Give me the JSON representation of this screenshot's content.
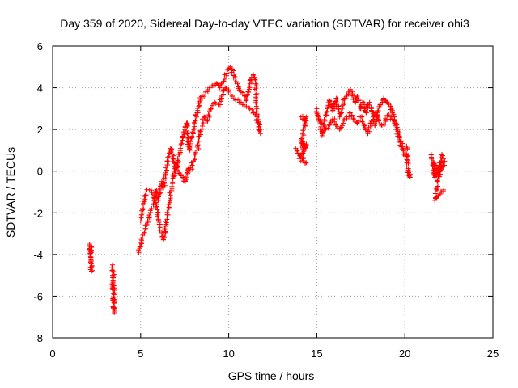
{
  "chart_data": {
    "type": "scatter",
    "title": "Day 359 of 2020, Sidereal Day-to-day VTEC variation (SDTVAR) for receiver ohi3",
    "xlabel": "GPS time / hours",
    "ylabel": "SDTVAR / TECUs",
    "xlim": [
      0,
      25
    ],
    "ylim": [
      -8,
      6
    ],
    "xticks": [
      "0",
      "5",
      "10",
      "15",
      "20",
      "25"
    ],
    "yticks": [
      "-8",
      "-6",
      "-4",
      "-2",
      "0",
      "2",
      "4",
      "6"
    ],
    "grid": true,
    "marker": "+",
    "color": "#ff0000",
    "series": [
      {
        "name": "SDTVAR",
        "segments": [
          [
            [
              2.1,
              -3.5
            ],
            [
              2.15,
              -4.1
            ],
            [
              2.2,
              -4.8
            ],
            [
              2.2,
              -3.6
            ]
          ],
          [
            [
              3.4,
              -4.5
            ],
            [
              3.45,
              -5.1
            ],
            [
              3.45,
              -5.6
            ],
            [
              3.5,
              -6.3
            ],
            [
              3.5,
              -6.8
            ],
            [
              3.4,
              -5.0
            ]
          ],
          [
            [
              4.9,
              -3.9
            ],
            [
              5.0,
              -3.6
            ],
            [
              5.2,
              -3.0
            ],
            [
              5.4,
              -2.4
            ],
            [
              5.6,
              -1.8
            ],
            [
              5.8,
              -1.3
            ],
            [
              5.9,
              -0.9
            ],
            [
              6.0,
              -1.4
            ],
            [
              6.1,
              -0.9
            ],
            [
              6.2,
              -0.5
            ],
            [
              6.3,
              -0.8
            ],
            [
              6.4,
              -0.2
            ],
            [
              6.5,
              0.3
            ],
            [
              6.6,
              0.7
            ],
            [
              6.7,
              1.1
            ],
            [
              6.8,
              0.8
            ],
            [
              6.9,
              0.4
            ],
            [
              7.0,
              0.0
            ],
            [
              7.1,
              0.4
            ],
            [
              7.2,
              0.8
            ],
            [
              7.3,
              1.3
            ],
            [
              7.4,
              1.6
            ],
            [
              7.5,
              2.0
            ],
            [
              7.6,
              2.3
            ],
            [
              7.7,
              1.4
            ],
            [
              7.8,
              1.0
            ],
            [
              7.9,
              1.6
            ],
            [
              8.0,
              2.0
            ],
            [
              8.1,
              2.4
            ],
            [
              8.2,
              2.8
            ],
            [
              8.3,
              3.1
            ],
            [
              8.4,
              3.4
            ],
            [
              8.5,
              3.6
            ],
            [
              8.7,
              3.8
            ],
            [
              8.9,
              4.0
            ],
            [
              9.1,
              4.1
            ],
            [
              9.3,
              4.2
            ],
            [
              9.5,
              4.0
            ],
            [
              9.7,
              4.3
            ],
            [
              9.9,
              4.7
            ],
            [
              10.0,
              4.9
            ],
            [
              10.1,
              5.0
            ],
            [
              10.2,
              4.9
            ],
            [
              10.3,
              4.6
            ],
            [
              10.5,
              4.2
            ],
            [
              10.7,
              3.8
            ],
            [
              10.9,
              3.6
            ],
            [
              11.0,
              3.4
            ],
            [
              11.1,
              3.8
            ],
            [
              11.2,
              4.2
            ],
            [
              11.3,
              4.5
            ],
            [
              11.4,
              4.6
            ],
            [
              11.5,
              4.4
            ],
            [
              11.6,
              3.0
            ],
            [
              11.7,
              2.3
            ],
            [
              11.8,
              1.8
            ]
          ],
          [
            [
              5.0,
              -2.4
            ],
            [
              5.1,
              -1.8
            ],
            [
              5.2,
              -1.4
            ],
            [
              5.3,
              -1.0
            ],
            [
              5.5,
              -0.9
            ],
            [
              5.7,
              -1.1
            ],
            [
              5.9,
              -1.6
            ],
            [
              6.0,
              -2.2
            ],
            [
              6.1,
              -2.7
            ],
            [
              6.2,
              -3.0
            ],
            [
              6.3,
              -3.3
            ],
            [
              6.4,
              -2.9
            ],
            [
              6.5,
              -2.2
            ],
            [
              6.6,
              -1.6
            ],
            [
              6.7,
              -1.0
            ],
            [
              6.8,
              -0.6
            ],
            [
              6.9,
              0.0
            ],
            [
              7.0,
              0.3
            ],
            [
              7.2,
              -0.1
            ],
            [
              7.4,
              -0.3
            ],
            [
              7.5,
              -0.5
            ],
            [
              7.6,
              -0.4
            ],
            [
              7.7,
              0.1
            ],
            [
              7.8,
              0.0
            ],
            [
              8.0,
              0.5
            ],
            [
              8.2,
              1.0
            ],
            [
              8.4,
              1.9
            ],
            [
              8.6,
              2.6
            ],
            [
              8.8,
              2.4
            ],
            [
              9.0,
              3.0
            ],
            [
              9.2,
              3.3
            ],
            [
              9.4,
              3.2
            ],
            [
              9.6,
              3.5
            ],
            [
              9.8,
              4.0
            ],
            [
              10.0,
              3.9
            ],
            [
              10.2,
              3.6
            ],
            [
              10.4,
              3.4
            ],
            [
              10.6,
              3.3
            ],
            [
              10.8,
              3.2
            ],
            [
              11.0,
              3.1
            ],
            [
              11.2,
              3.0
            ],
            [
              11.4,
              2.8
            ],
            [
              11.6,
              2.6
            ],
            [
              11.7,
              2.0
            ]
          ],
          [
            [
              14.1,
              2.6
            ],
            [
              14.2,
              2.5
            ],
            [
              14.3,
              2.4
            ],
            [
              14.4,
              2.6
            ],
            [
              14.1,
              1.2
            ],
            [
              14.2,
              1.4
            ],
            [
              14.3,
              1.0
            ],
            [
              14.4,
              1.3
            ],
            [
              14.0,
              0.6
            ],
            [
              14.2,
              0.5
            ],
            [
              14.4,
              0.4
            ],
            [
              13.8,
              1.1
            ]
          ],
          [
            [
              15.0,
              3.0
            ],
            [
              15.1,
              2.6
            ],
            [
              15.2,
              2.0
            ],
            [
              15.3,
              1.7
            ],
            [
              15.4,
              2.2
            ],
            [
              15.5,
              2.7
            ],
            [
              15.6,
              3.0
            ],
            [
              15.7,
              3.4
            ],
            [
              15.8,
              3.2
            ],
            [
              15.9,
              2.9
            ],
            [
              16.0,
              3.1
            ],
            [
              16.1,
              3.5
            ],
            [
              16.2,
              3.0
            ],
            [
              16.3,
              2.6
            ],
            [
              16.4,
              2.8
            ],
            [
              16.5,
              3.2
            ],
            [
              16.6,
              3.5
            ],
            [
              16.7,
              3.6
            ],
            [
              16.8,
              3.7
            ],
            [
              16.9,
              3.9
            ],
            [
              17.0,
              3.8
            ],
            [
              17.1,
              3.6
            ],
            [
              17.2,
              3.3
            ],
            [
              17.3,
              3.6
            ],
            [
              17.4,
              3.4
            ],
            [
              17.5,
              3.0
            ],
            [
              17.6,
              3.3
            ],
            [
              17.7,
              3.0
            ],
            [
              17.8,
              2.8
            ],
            [
              17.9,
              3.2
            ],
            [
              18.0,
              3.3
            ],
            [
              18.1,
              3.0
            ],
            [
              18.2,
              2.6
            ],
            [
              18.3,
              2.2
            ],
            [
              18.4,
              2.5
            ],
            [
              18.5,
              2.9
            ],
            [
              18.6,
              3.2
            ],
            [
              18.7,
              3.4
            ],
            [
              18.8,
              3.5
            ],
            [
              18.9,
              3.4
            ],
            [
              19.0,
              3.3
            ],
            [
              19.1,
              3.2
            ],
            [
              19.2,
              3.1
            ],
            [
              19.3,
              2.9
            ],
            [
              19.4,
              2.6
            ],
            [
              19.5,
              2.3
            ],
            [
              19.6,
              2.0
            ],
            [
              19.7,
              1.6
            ],
            [
              19.8,
              1.2
            ],
            [
              19.9,
              1.0
            ],
            [
              20.0,
              0.8
            ],
            [
              20.1,
              0.7
            ]
          ],
          [
            [
              15.1,
              2.5
            ],
            [
              15.3,
              2.3
            ],
            [
              15.5,
              2.0
            ],
            [
              15.7,
              2.2
            ],
            [
              15.9,
              2.5
            ],
            [
              16.1,
              2.2
            ],
            [
              16.3,
              2.0
            ],
            [
              16.5,
              2.3
            ],
            [
              16.7,
              2.6
            ],
            [
              16.9,
              2.8
            ],
            [
              17.1,
              2.5
            ],
            [
              17.3,
              2.3
            ],
            [
              17.5,
              2.6
            ],
            [
              17.7,
              2.2
            ],
            [
              17.9,
              1.8
            ],
            [
              18.1,
              2.4
            ],
            [
              18.3,
              2.8
            ],
            [
              18.5,
              2.5
            ],
            [
              18.7,
              2.2
            ],
            [
              18.9,
              2.4
            ],
            [
              19.1,
              2.7
            ],
            [
              19.3,
              2.5
            ],
            [
              19.5,
              2.0
            ],
            [
              19.7,
              1.5
            ],
            [
              19.9,
              1.1
            ],
            [
              20.1,
              1.2
            ],
            [
              20.2,
              -0.2
            ],
            [
              20.3,
              -0.3
            ],
            [
              20.2,
              0.0
            ]
          ],
          [
            [
              21.5,
              0.8
            ],
            [
              21.6,
              0.5
            ],
            [
              21.7,
              0.2
            ],
            [
              21.8,
              -0.2
            ],
            [
              21.9,
              0.0
            ],
            [
              22.0,
              0.4
            ],
            [
              22.1,
              0.8
            ],
            [
              22.2,
              0.6
            ],
            [
              22.2,
              0.2
            ],
            [
              21.6,
              -0.1
            ],
            [
              21.7,
              -0.3
            ],
            [
              21.6,
              0.4
            ],
            [
              22.0,
              0.0
            ],
            [
              22.1,
              0.5
            ],
            [
              21.7,
              -1.4
            ],
            [
              21.8,
              -1.3
            ],
            [
              21.9,
              -1.2
            ],
            [
              22.0,
              -1.1
            ],
            [
              22.1,
              -1.0
            ],
            [
              22.2,
              -0.9
            ]
          ]
        ]
      }
    ]
  }
}
